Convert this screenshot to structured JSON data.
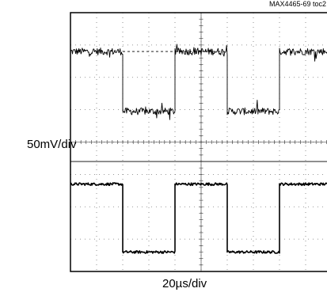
{
  "figure_id": "MAX4465-69 toc2",
  "vertical_scale": "50mV/div",
  "horizontal_scale": "20µs/div",
  "chart_data": {
    "type": "line",
    "title": "",
    "xlabel": "20µs/div",
    "ylabel": "50mV/div",
    "x_unit": "µs",
    "x_range": [
      0,
      200
    ],
    "y_range_divisions": [
      -4,
      4
    ],
    "grid": true,
    "grid_divisions": {
      "x": 10,
      "y": 8
    },
    "series": [
      {
        "channel": "top",
        "shape": "square",
        "high_div": 2.8,
        "low_div": 0.95,
        "edges_us": [
          40,
          80,
          120,
          160
        ],
        "starts": "high",
        "noise": "heavy"
      },
      {
        "channel": "bottom",
        "shape": "square",
        "high_div": -1.3,
        "low_div": -3.4,
        "edges_us": [
          40,
          80,
          120,
          160
        ],
        "starts": "high",
        "noise": "light"
      }
    ],
    "reference_lines": [
      {
        "style": "dashed",
        "y_div": 2.8,
        "x_from_us": 40,
        "x_to_us": 120
      },
      {
        "style": "solid",
        "y_div": -0.6,
        "x_from_us": 0,
        "x_to_us": 200
      }
    ]
  }
}
